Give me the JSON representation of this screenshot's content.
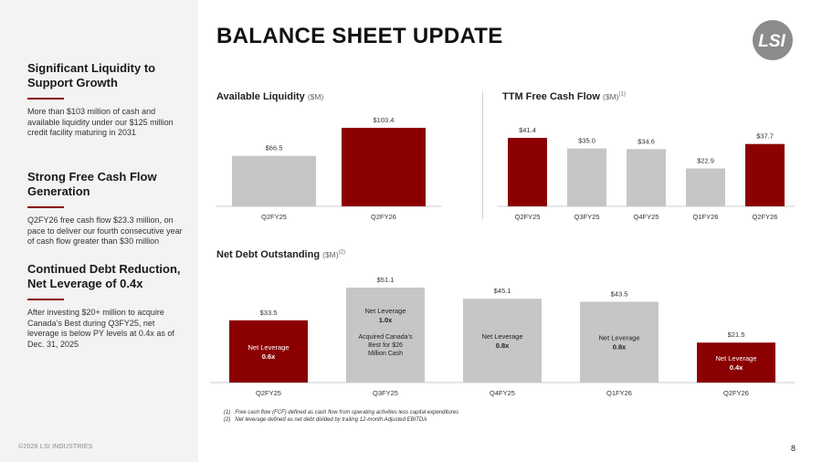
{
  "page": {
    "title": "BALANCE SHEET UPDATE",
    "page_number": "8",
    "copyright": "©2026 LSI INDUSTRIES",
    "logo_text": "LSI"
  },
  "left_panel": {
    "sections": [
      {
        "heading": "Significant Liquidity to Support Growth",
        "body": "More than $103 million of cash and available liquidity under our $125 million credit facility maturing in 2031"
      },
      {
        "heading": "Strong Free Cash Flow Generation",
        "body": "Q2FY26 free cash flow $23.3 million, on pace to deliver our fourth consecutive year of cash flow greater than $30 million"
      },
      {
        "heading": "Continued Debt Reduction, Net Leverage of 0.4x",
        "body": "After investing $20+ million to acquire Canada’s Best during Q3FY25, net leverage is below PY levels at 0.4x as of Dec. 31, 2025"
      }
    ]
  },
  "colors": {
    "accent": "#8b0000",
    "grey_bar": "#c6c6c6",
    "rule": "#8b0000"
  },
  "chart_data": [
    {
      "type": "bar",
      "title": "Available Liquidity",
      "unit": "($M)",
      "footnote_ref": "",
      "categories": [
        "Q2FY25",
        "Q2FY26"
      ],
      "values": [
        66.5,
        103.4
      ],
      "labels": [
        "$66.5",
        "$103.4"
      ],
      "highlight": [
        false,
        true
      ],
      "ylim": [
        0,
        103.4
      ]
    },
    {
      "type": "bar",
      "title": "TTM Free Cash Flow",
      "unit": "($M)",
      "footnote_ref": "(1)",
      "categories": [
        "Q2FY25",
        "Q3FY25",
        "Q4FY25",
        "Q1FY26",
        "Q2FY26"
      ],
      "values": [
        41.4,
        35.0,
        34.6,
        22.9,
        37.7
      ],
      "labels": [
        "$41.4",
        "$35.0",
        "$34.6",
        "$22.9",
        "$37.7"
      ],
      "highlight": [
        true,
        false,
        false,
        false,
        true
      ],
      "ylim": [
        0,
        41.4
      ]
    },
    {
      "type": "bar",
      "title": "Net Debt Outstanding",
      "unit": "($M)",
      "footnote_ref": "(2)",
      "categories": [
        "Q2FY25",
        "Q3FY25",
        "Q4FY25",
        "Q1FY26",
        "Q2FY26"
      ],
      "values": [
        33.5,
        51.1,
        45.1,
        43.5,
        21.5
      ],
      "labels": [
        "$33.5",
        "$51.1",
        "$45.1",
        "$43.5",
        "$21.5"
      ],
      "highlight": [
        true,
        false,
        false,
        false,
        true
      ],
      "inner_label": "Net Leverage",
      "leverage": [
        "0.6x",
        "1.0x",
        "0.8x",
        "0.8x",
        "0.4x"
      ],
      "bar_notes": [
        "",
        "Acquired Canada’s Best for $26 Million Cash",
        "",
        "",
        ""
      ],
      "ylim": [
        0,
        51.1
      ]
    }
  ],
  "footnotes": [
    {
      "num": "(1)",
      "text": "Free cash flow (FCF) defined as cash flow from operating activities less capital expenditures"
    },
    {
      "num": "(2)",
      "text": "Net leverage defined as net debt divided by trailing 12-month Adjusted EBITDA"
    }
  ]
}
